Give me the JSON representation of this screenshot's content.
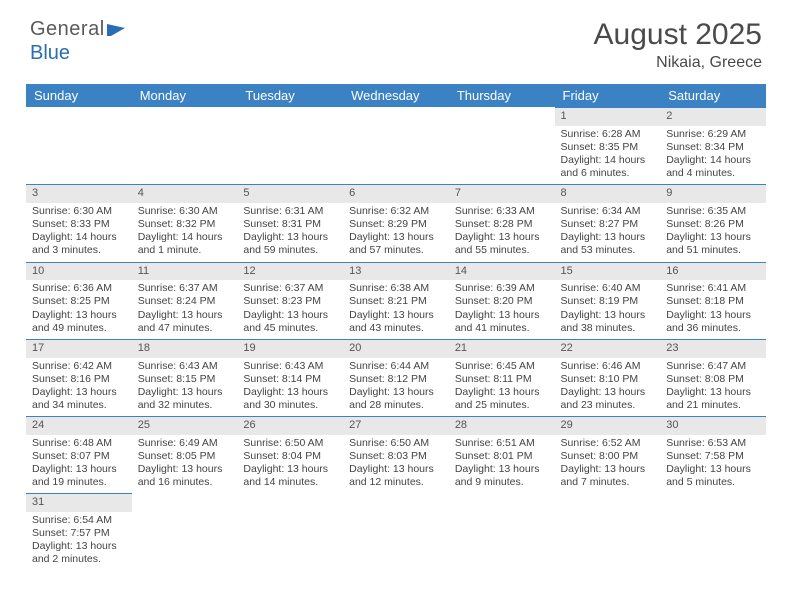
{
  "logo": {
    "text1": "General",
    "text2": "Blue"
  },
  "title": "August 2025",
  "location": "Nikaia, Greece",
  "colors": {
    "header_bg": "#3b82c4",
    "header_text": "#ffffff",
    "daynum_bg": "#e8e8e8",
    "row_divider": "#3b82c4",
    "body_text": "#444444",
    "background": "#ffffff"
  },
  "weekdays": [
    "Sunday",
    "Monday",
    "Tuesday",
    "Wednesday",
    "Thursday",
    "Friday",
    "Saturday"
  ],
  "cells": [
    {
      "day": "",
      "sunrise": "",
      "sunset": "",
      "daylight": ""
    },
    {
      "day": "",
      "sunrise": "",
      "sunset": "",
      "daylight": ""
    },
    {
      "day": "",
      "sunrise": "",
      "sunset": "",
      "daylight": ""
    },
    {
      "day": "",
      "sunrise": "",
      "sunset": "",
      "daylight": ""
    },
    {
      "day": "",
      "sunrise": "",
      "sunset": "",
      "daylight": ""
    },
    {
      "day": "1",
      "sunrise": "Sunrise: 6:28 AM",
      "sunset": "Sunset: 8:35 PM",
      "daylight": "Daylight: 14 hours and 6 minutes."
    },
    {
      "day": "2",
      "sunrise": "Sunrise: 6:29 AM",
      "sunset": "Sunset: 8:34 PM",
      "daylight": "Daylight: 14 hours and 4 minutes."
    },
    {
      "day": "3",
      "sunrise": "Sunrise: 6:30 AM",
      "sunset": "Sunset: 8:33 PM",
      "daylight": "Daylight: 14 hours and 3 minutes."
    },
    {
      "day": "4",
      "sunrise": "Sunrise: 6:30 AM",
      "sunset": "Sunset: 8:32 PM",
      "daylight": "Daylight: 14 hours and 1 minute."
    },
    {
      "day": "5",
      "sunrise": "Sunrise: 6:31 AM",
      "sunset": "Sunset: 8:31 PM",
      "daylight": "Daylight: 13 hours and 59 minutes."
    },
    {
      "day": "6",
      "sunrise": "Sunrise: 6:32 AM",
      "sunset": "Sunset: 8:29 PM",
      "daylight": "Daylight: 13 hours and 57 minutes."
    },
    {
      "day": "7",
      "sunrise": "Sunrise: 6:33 AM",
      "sunset": "Sunset: 8:28 PM",
      "daylight": "Daylight: 13 hours and 55 minutes."
    },
    {
      "day": "8",
      "sunrise": "Sunrise: 6:34 AM",
      "sunset": "Sunset: 8:27 PM",
      "daylight": "Daylight: 13 hours and 53 minutes."
    },
    {
      "day": "9",
      "sunrise": "Sunrise: 6:35 AM",
      "sunset": "Sunset: 8:26 PM",
      "daylight": "Daylight: 13 hours and 51 minutes."
    },
    {
      "day": "10",
      "sunrise": "Sunrise: 6:36 AM",
      "sunset": "Sunset: 8:25 PM",
      "daylight": "Daylight: 13 hours and 49 minutes."
    },
    {
      "day": "11",
      "sunrise": "Sunrise: 6:37 AM",
      "sunset": "Sunset: 8:24 PM",
      "daylight": "Daylight: 13 hours and 47 minutes."
    },
    {
      "day": "12",
      "sunrise": "Sunrise: 6:37 AM",
      "sunset": "Sunset: 8:23 PM",
      "daylight": "Daylight: 13 hours and 45 minutes."
    },
    {
      "day": "13",
      "sunrise": "Sunrise: 6:38 AM",
      "sunset": "Sunset: 8:21 PM",
      "daylight": "Daylight: 13 hours and 43 minutes."
    },
    {
      "day": "14",
      "sunrise": "Sunrise: 6:39 AM",
      "sunset": "Sunset: 8:20 PM",
      "daylight": "Daylight: 13 hours and 41 minutes."
    },
    {
      "day": "15",
      "sunrise": "Sunrise: 6:40 AM",
      "sunset": "Sunset: 8:19 PM",
      "daylight": "Daylight: 13 hours and 38 minutes."
    },
    {
      "day": "16",
      "sunrise": "Sunrise: 6:41 AM",
      "sunset": "Sunset: 8:18 PM",
      "daylight": "Daylight: 13 hours and 36 minutes."
    },
    {
      "day": "17",
      "sunrise": "Sunrise: 6:42 AM",
      "sunset": "Sunset: 8:16 PM",
      "daylight": "Daylight: 13 hours and 34 minutes."
    },
    {
      "day": "18",
      "sunrise": "Sunrise: 6:43 AM",
      "sunset": "Sunset: 8:15 PM",
      "daylight": "Daylight: 13 hours and 32 minutes."
    },
    {
      "day": "19",
      "sunrise": "Sunrise: 6:43 AM",
      "sunset": "Sunset: 8:14 PM",
      "daylight": "Daylight: 13 hours and 30 minutes."
    },
    {
      "day": "20",
      "sunrise": "Sunrise: 6:44 AM",
      "sunset": "Sunset: 8:12 PM",
      "daylight": "Daylight: 13 hours and 28 minutes."
    },
    {
      "day": "21",
      "sunrise": "Sunrise: 6:45 AM",
      "sunset": "Sunset: 8:11 PM",
      "daylight": "Daylight: 13 hours and 25 minutes."
    },
    {
      "day": "22",
      "sunrise": "Sunrise: 6:46 AM",
      "sunset": "Sunset: 8:10 PM",
      "daylight": "Daylight: 13 hours and 23 minutes."
    },
    {
      "day": "23",
      "sunrise": "Sunrise: 6:47 AM",
      "sunset": "Sunset: 8:08 PM",
      "daylight": "Daylight: 13 hours and 21 minutes."
    },
    {
      "day": "24",
      "sunrise": "Sunrise: 6:48 AM",
      "sunset": "Sunset: 8:07 PM",
      "daylight": "Daylight: 13 hours and 19 minutes."
    },
    {
      "day": "25",
      "sunrise": "Sunrise: 6:49 AM",
      "sunset": "Sunset: 8:05 PM",
      "daylight": "Daylight: 13 hours and 16 minutes."
    },
    {
      "day": "26",
      "sunrise": "Sunrise: 6:50 AM",
      "sunset": "Sunset: 8:04 PM",
      "daylight": "Daylight: 13 hours and 14 minutes."
    },
    {
      "day": "27",
      "sunrise": "Sunrise: 6:50 AM",
      "sunset": "Sunset: 8:03 PM",
      "daylight": "Daylight: 13 hours and 12 minutes."
    },
    {
      "day": "28",
      "sunrise": "Sunrise: 6:51 AM",
      "sunset": "Sunset: 8:01 PM",
      "daylight": "Daylight: 13 hours and 9 minutes."
    },
    {
      "day": "29",
      "sunrise": "Sunrise: 6:52 AM",
      "sunset": "Sunset: 8:00 PM",
      "daylight": "Daylight: 13 hours and 7 minutes."
    },
    {
      "day": "30",
      "sunrise": "Sunrise: 6:53 AM",
      "sunset": "Sunset: 7:58 PM",
      "daylight": "Daylight: 13 hours and 5 minutes."
    },
    {
      "day": "31",
      "sunrise": "Sunrise: 6:54 AM",
      "sunset": "Sunset: 7:57 PM",
      "daylight": "Daylight: 13 hours and 2 minutes."
    },
    {
      "day": "",
      "sunrise": "",
      "sunset": "",
      "daylight": ""
    },
    {
      "day": "",
      "sunrise": "",
      "sunset": "",
      "daylight": ""
    },
    {
      "day": "",
      "sunrise": "",
      "sunset": "",
      "daylight": ""
    },
    {
      "day": "",
      "sunrise": "",
      "sunset": "",
      "daylight": ""
    },
    {
      "day": "",
      "sunrise": "",
      "sunset": "",
      "daylight": ""
    },
    {
      "day": "",
      "sunrise": "",
      "sunset": "",
      "daylight": ""
    }
  ]
}
